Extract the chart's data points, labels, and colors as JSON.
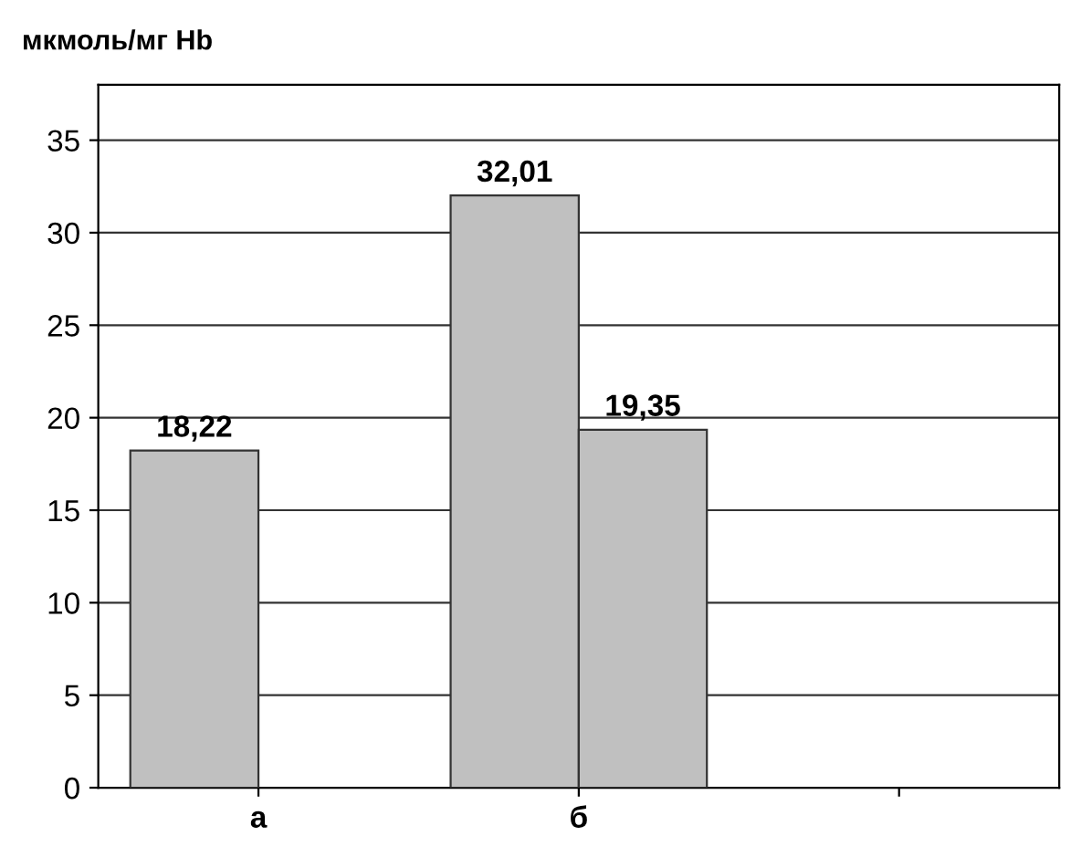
{
  "chart_data": {
    "type": "bar",
    "ylabel": "мкмоль/мг Hb",
    "categories": [
      "а",
      "б",
      null
    ],
    "series": [
      {
        "color": "#c0c0c0",
        "values": [
          18.22,
          32.01,
          null
        ],
        "value_labels": [
          "18,22",
          "32,01",
          null
        ]
      },
      {
        "color": "#c0c0c0",
        "values": [
          null,
          19.35,
          null
        ],
        "value_labels": [
          null,
          "19,35",
          null
        ]
      }
    ],
    "ylim": [
      0,
      38
    ],
    "yticks": [
      0,
      5,
      10,
      15,
      20,
      25,
      30,
      35
    ],
    "grid": "y",
    "legend": false
  }
}
